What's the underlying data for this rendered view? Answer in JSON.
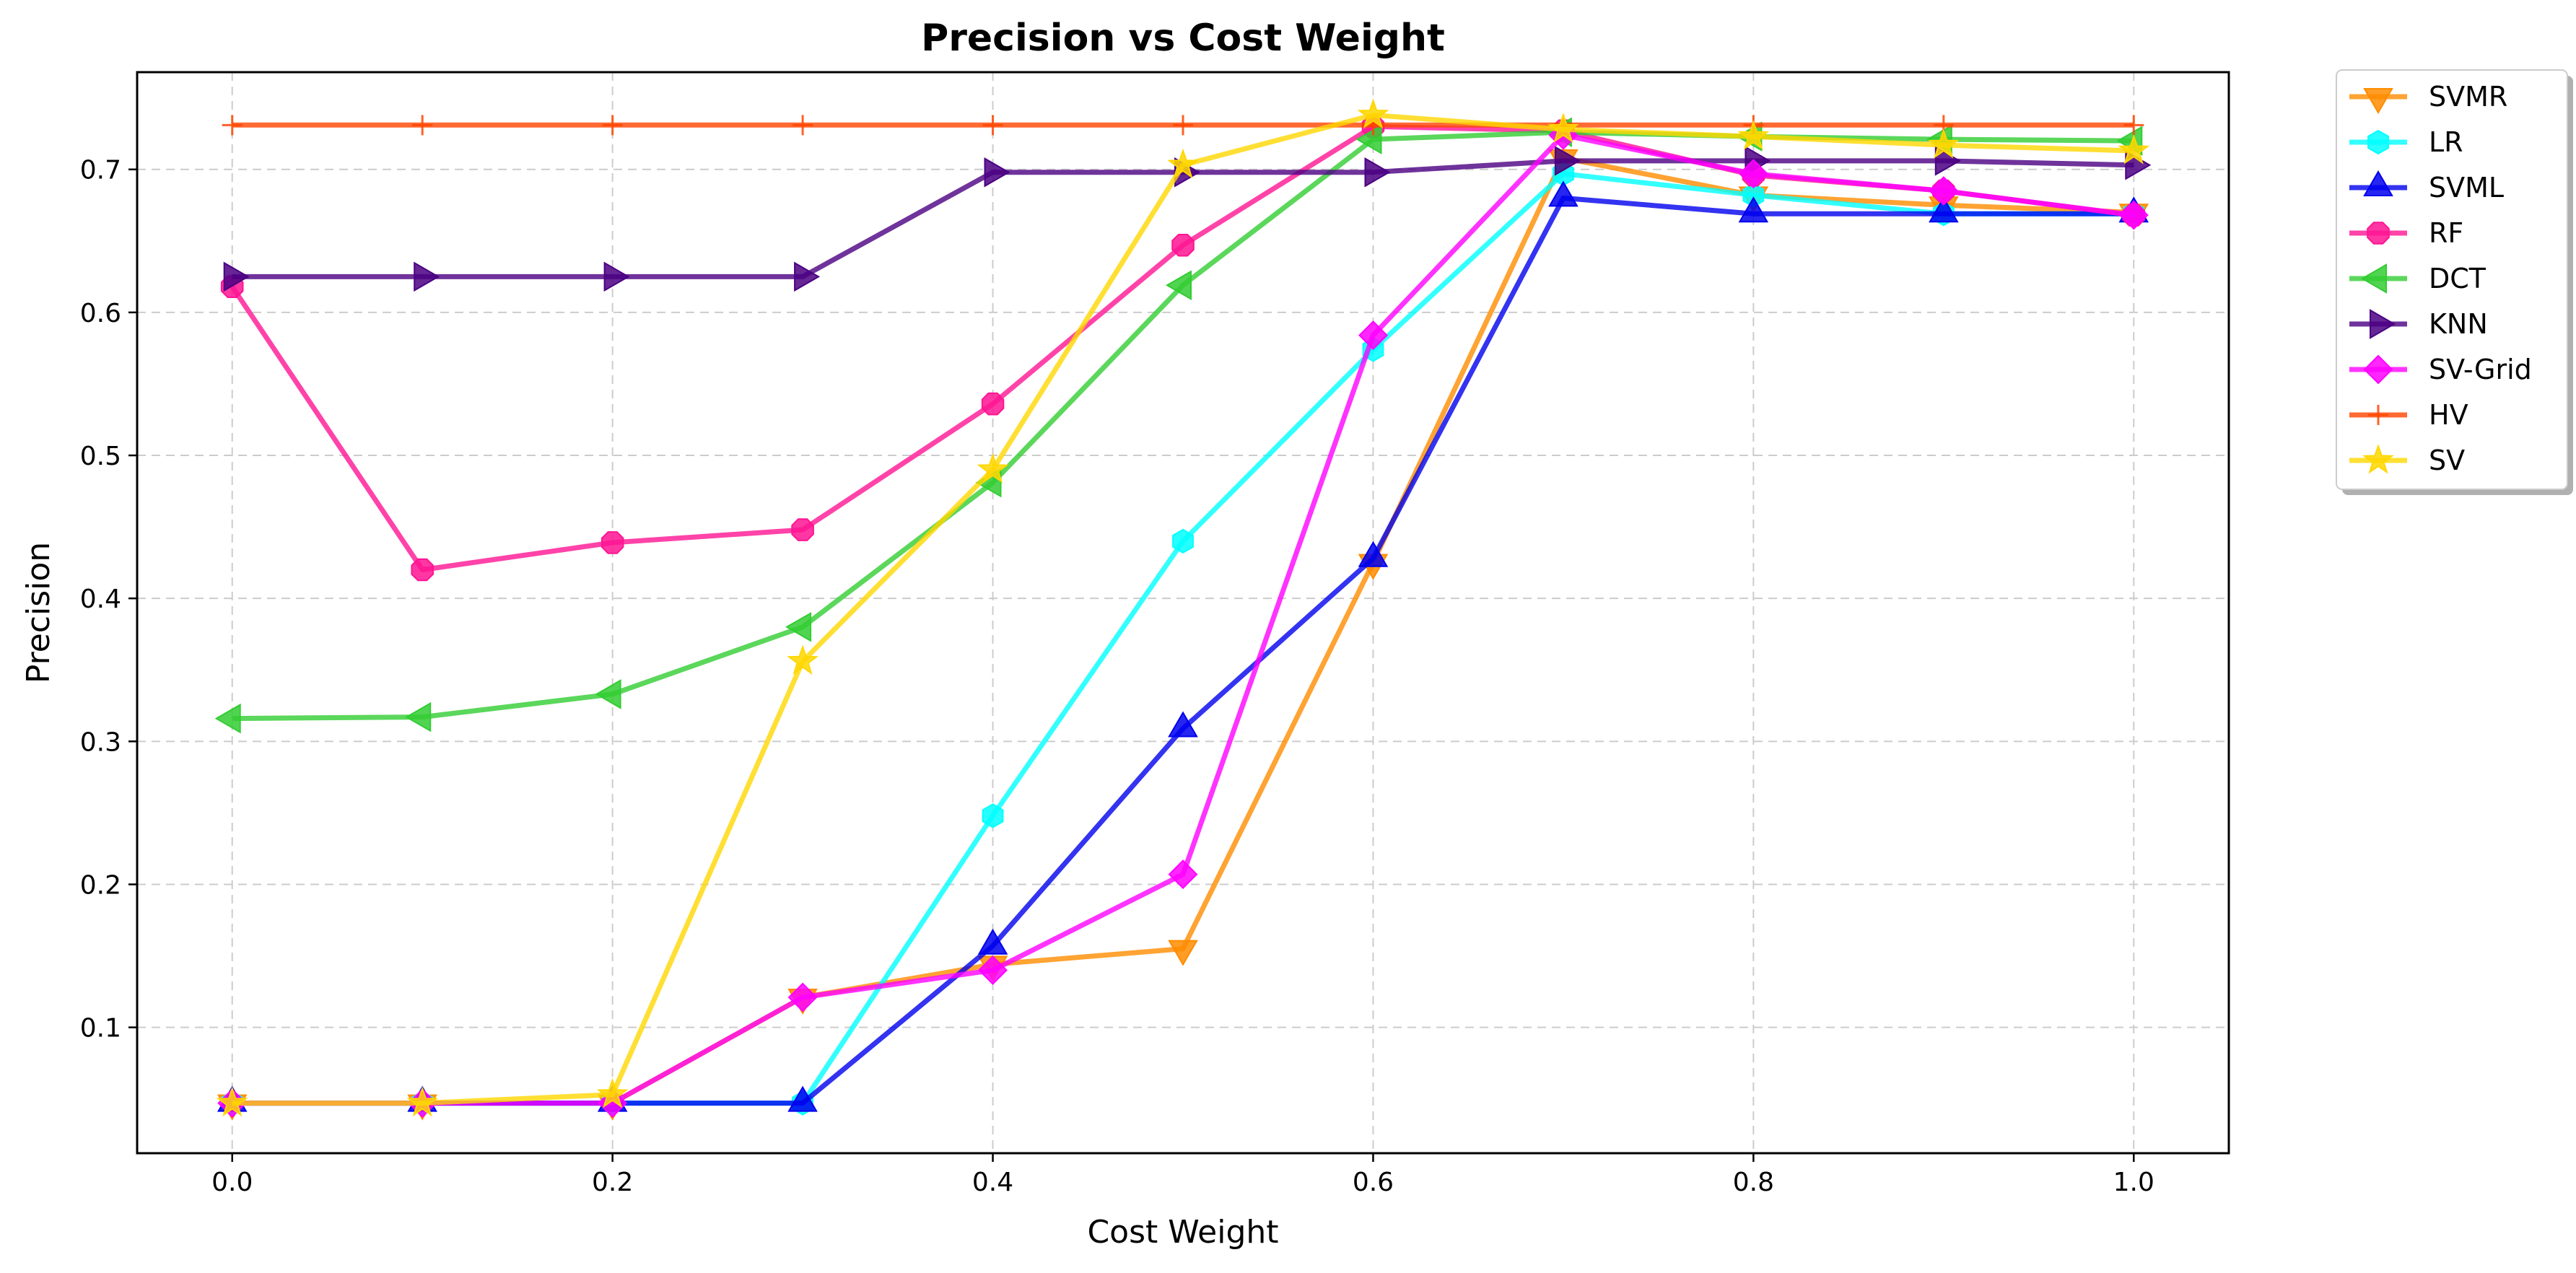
{
  "chart_data": {
    "type": "line",
    "title": "Precision vs Cost Weight",
    "xlabel": "Cost Weight",
    "ylabel": "Precision",
    "xlim": [
      -0.05,
      1.05
    ],
    "ylim": [
      0.012,
      0.768
    ],
    "x_ticks": [
      0.0,
      0.2,
      0.4,
      0.6,
      0.8,
      1.0
    ],
    "x_tick_labels": [
      "0.0",
      "0.2",
      "0.4",
      "0.6",
      "0.8",
      "1.0"
    ],
    "y_ticks": [
      0.1,
      0.2,
      0.3,
      0.4,
      0.5,
      0.6,
      0.7
    ],
    "y_tick_labels": [
      "0.1",
      "0.2",
      "0.3",
      "0.4",
      "0.5",
      "0.6",
      "0.7"
    ],
    "grid": true,
    "legend_position": "outside-top-right",
    "x": [
      0.0,
      0.1,
      0.2,
      0.3,
      0.4,
      0.5,
      0.6,
      0.7,
      0.8,
      0.9,
      1.0
    ],
    "series": [
      {
        "name": "SVMR",
        "color": "#ff8c00",
        "marker": "triangle-down",
        "values": [
          0.047,
          0.047,
          0.047,
          0.121,
          0.144,
          0.155,
          0.425,
          0.708,
          0.682,
          0.675,
          0.67
        ]
      },
      {
        "name": "LR",
        "color": "#00ffff",
        "marker": "hexagon",
        "values": [
          0.047,
          0.047,
          0.047,
          0.047,
          0.248,
          0.44,
          0.574,
          0.697,
          0.682,
          0.669,
          0.669
        ]
      },
      {
        "name": "SVML",
        "color": "#0000ee",
        "marker": "triangle-up",
        "values": [
          0.047,
          0.047,
          0.047,
          0.047,
          0.157,
          0.309,
          0.428,
          0.68,
          0.669,
          0.669,
          0.669
        ]
      },
      {
        "name": "RF",
        "color": "#ff1493",
        "marker": "octagon",
        "values": [
          0.618,
          0.42,
          0.439,
          0.448,
          0.536,
          0.647,
          0.73,
          0.727,
          0.696,
          0.685,
          0.668
        ]
      },
      {
        "name": "DCT",
        "color": "#32cd32",
        "marker": "triangle-left",
        "values": [
          0.316,
          0.317,
          0.333,
          0.38,
          0.481,
          0.619,
          0.721,
          0.726,
          0.723,
          0.721,
          0.72
        ]
      },
      {
        "name": "KNN",
        "color": "#4b0082",
        "marker": "triangle-right",
        "values": [
          0.625,
          0.625,
          0.625,
          0.625,
          0.698,
          0.698,
          0.698,
          0.706,
          0.706,
          0.706,
          0.703
        ]
      },
      {
        "name": "SV-Grid",
        "color": "#ff00ff",
        "marker": "diamond",
        "values": [
          0.047,
          0.047,
          0.047,
          0.121,
          0.14,
          0.207,
          0.584,
          0.724,
          0.697,
          0.685,
          0.668
        ]
      },
      {
        "name": "HV",
        "color": "#ff4500",
        "marker": "plus",
        "values": [
          0.731,
          0.731,
          0.731,
          0.731,
          0.731,
          0.731,
          0.731,
          0.731,
          0.731,
          0.731,
          0.731
        ]
      },
      {
        "name": "SV",
        "color": "#ffd700",
        "marker": "star",
        "values": [
          0.047,
          0.047,
          0.053,
          0.356,
          0.49,
          0.703,
          0.738,
          0.728,
          0.723,
          0.717,
          0.713
        ]
      }
    ]
  }
}
